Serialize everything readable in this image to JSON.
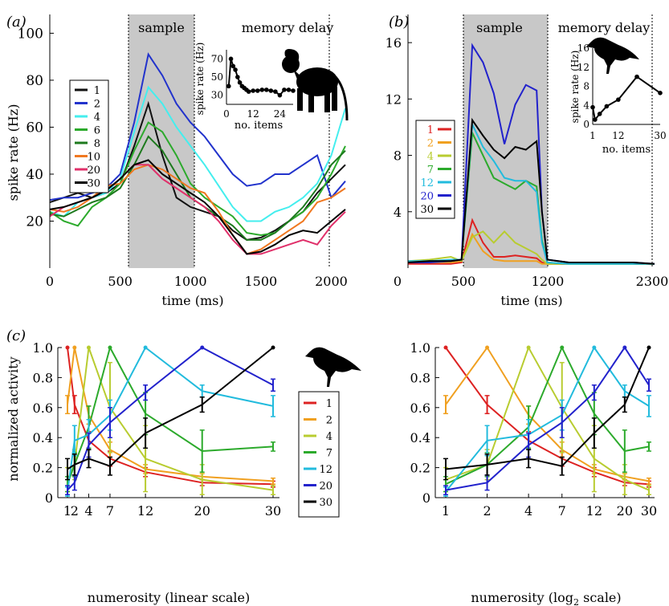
{
  "panels": {
    "a": {
      "label": "(a)",
      "sample_label": "sample",
      "delay_label": "memory delay",
      "xlabel": "time (ms)",
      "ylabel": "spike rate (Hz)",
      "xticks": [
        "0",
        "500",
        "1000",
        "1500",
        "2000"
      ],
      "yticks": [
        "20",
        "40",
        "60",
        "80",
        "100"
      ],
      "legend": [
        "1",
        "2",
        "4",
        "6",
        "8",
        "10",
        "20",
        "30"
      ],
      "inset": {
        "xlabel": "no. items",
        "ylabel": "spike rate (Hz)",
        "xticks": [
          "0",
          "12",
          "24"
        ],
        "yticks": [
          "30",
          "50",
          "70"
        ]
      }
    },
    "b": {
      "label": "(b)",
      "sample_label": "sample",
      "delay_label": "memory delay",
      "xlabel": "time (ms)",
      "yticks": [
        "4",
        "8",
        "12",
        "16"
      ],
      "xticks": [
        "0",
        "500",
        "1200",
        "2300"
      ],
      "legend": [
        "1",
        "2",
        "4",
        "7",
        "12",
        "20",
        "30"
      ],
      "inset": {
        "xlabel": "no. items",
        "ylabel": "spike rate (Hz)",
        "xticks": [
          "1",
          "12",
          "30"
        ],
        "yticks": [
          "0",
          "4",
          "8",
          "12",
          "16"
        ]
      }
    },
    "c": {
      "label": "(c)",
      "ylabel": "normalized activity",
      "xlabel_left": "numerosity (linear scale)",
      "xlabel_right_pre": "numerosity (log",
      "xlabel_right_sub": "2",
      "xlabel_right_post": " scale)",
      "xticks_left": [
        "1",
        "2",
        "4",
        "7",
        "12",
        "20",
        "30"
      ],
      "xticks_right": [
        "1",
        "2",
        "4",
        "7",
        "12",
        "20",
        "30"
      ],
      "yticks": [
        "0",
        "0.2",
        "0.4",
        "0.6",
        "0.8",
        "1.0"
      ],
      "legend": [
        "1",
        "2",
        "4",
        "7",
        "12",
        "20",
        "30"
      ]
    }
  },
  "colors": {
    "n1": "#dd2222",
    "n2": "#f0a020",
    "n4": "#b8cc30",
    "n6": "#2caa2c",
    "n7": "#2caa2c",
    "n8": "#1e7a1e",
    "n10": "#f07820",
    "n12": "#22bbdd",
    "n20": "#2222cc",
    "n20a": "#e0306a",
    "n30": "#000000",
    "n2a": "#2233cc",
    "n4a": "#44eeee",
    "sample_fill": "#c8c8c8"
  },
  "chart_data": [
    {
      "type": "line",
      "title": "",
      "xlabel": "time (ms)",
      "ylabel": "spike rate (Hz)",
      "xlim": [
        0,
        2100
      ],
      "ylim": [
        0,
        100
      ],
      "x": [
        0,
        100,
        200,
        300,
        400,
        500,
        600,
        700,
        800,
        900,
        1000,
        1100,
        1200,
        1300,
        1400,
        1500,
        1600,
        1700,
        1800,
        1900,
        2000,
        2100
      ],
      "series": [
        {
          "name": "1",
          "values": [
            28,
            30,
            32,
            30,
            32,
            36,
            52,
            70,
            48,
            30,
            26,
            24,
            22,
            16,
            12,
            13,
            16,
            20,
            24,
            32,
            38,
            44
          ]
        },
        {
          "name": "2",
          "values": [
            29,
            30,
            30,
            32,
            34,
            40,
            62,
            91,
            82,
            70,
            62,
            56,
            48,
            40,
            35,
            36,
            40,
            40,
            44,
            48,
            30,
            37
          ]
        },
        {
          "name": "4",
          "values": [
            24,
            22,
            28,
            30,
            32,
            38,
            58,
            77,
            70,
            60,
            52,
            44,
            35,
            26,
            20,
            20,
            24,
            26,
            30,
            36,
            48,
            68
          ]
        },
        {
          "name": "6",
          "values": [
            24,
            20,
            18,
            26,
            30,
            36,
            50,
            62,
            58,
            48,
            36,
            30,
            26,
            22,
            15,
            14,
            15,
            20,
            24,
            30,
            40,
            52
          ]
        },
        {
          "name": "8",
          "values": [
            23,
            22,
            25,
            28,
            30,
            34,
            44,
            56,
            50,
            40,
            30,
            26,
            22,
            18,
            12,
            12,
            15,
            20,
            26,
            34,
            44,
            50
          ]
        },
        {
          "name": "10",
          "values": [
            25,
            24,
            26,
            30,
            35,
            36,
            42,
            44,
            42,
            38,
            34,
            32,
            24,
            14,
            6,
            8,
            12,
            16,
            20,
            28,
            30,
            34
          ]
        },
        {
          "name": "20",
          "values": [
            22,
            26,
            28,
            30,
            33,
            38,
            44,
            44,
            38,
            34,
            30,
            26,
            20,
            12,
            6,
            6,
            8,
            10,
            12,
            10,
            18,
            24
          ]
        },
        {
          "name": "30",
          "values": [
            25,
            26,
            28,
            30,
            33,
            38,
            44,
            46,
            40,
            36,
            32,
            28,
            22,
            14,
            6,
            7,
            10,
            14,
            16,
            15,
            20,
            25
          ]
        }
      ],
      "inset": {
        "type": "line",
        "xlabel": "no. items",
        "ylabel": "spike rate (Hz)",
        "xlim": [
          0,
          30
        ],
        "ylim": [
          20,
          80
        ],
        "x": [
          1,
          2,
          3,
          4,
          5,
          6,
          7,
          8,
          9,
          10,
          12,
          14,
          16,
          18,
          20,
          22,
          24,
          26,
          28,
          30
        ],
        "values": [
          40,
          70,
          62,
          58,
          50,
          44,
          40,
          38,
          36,
          34,
          35,
          35,
          36,
          36,
          35,
          34,
          30,
          36,
          36,
          35
        ]
      }
    },
    {
      "type": "line",
      "title": "",
      "xlabel": "time (ms)",
      "ylabel": "",
      "xlim": [
        0,
        2300
      ],
      "ylim": [
        0,
        18
      ],
      "x": [
        0,
        200,
        400,
        500,
        600,
        700,
        800,
        900,
        1000,
        1100,
        1200,
        1250,
        1300,
        1500,
        1800,
        2100,
        2300
      ],
      "series": [
        {
          "name": "1",
          "values": [
            0.3,
            0.3,
            0.3,
            0.4,
            3.4,
            1.8,
            0.8,
            0.8,
            0.9,
            0.8,
            0.7,
            0.4,
            0.3,
            0.3,
            0.3,
            0.3,
            0.3
          ]
        },
        {
          "name": "2",
          "values": [
            0.4,
            0.4,
            0.4,
            0.5,
            2.4,
            1.2,
            0.6,
            0.5,
            0.5,
            0.5,
            0.5,
            0.3,
            0.3,
            0.3,
            0.3,
            0.3,
            0.3
          ]
        },
        {
          "name": "4",
          "values": [
            0.5,
            0.6,
            0.8,
            0.5,
            2.2,
            2.6,
            1.8,
            2.6,
            1.8,
            1.4,
            1.0,
            0.6,
            0.3,
            0.3,
            0.3,
            0.3,
            0.3
          ]
        },
        {
          "name": "7",
          "values": [
            0.4,
            0.5,
            0.5,
            0.6,
            9.6,
            8.0,
            6.4,
            6.0,
            5.6,
            6.2,
            5.8,
            2.0,
            0.4,
            0.3,
            0.3,
            0.3,
            0.3
          ]
        },
        {
          "name": "12",
          "values": [
            0.5,
            0.5,
            0.6,
            0.6,
            10.2,
            8.6,
            7.6,
            6.4,
            6.2,
            6.2,
            5.4,
            1.8,
            0.4,
            0.3,
            0.3,
            0.3,
            0.3
          ]
        },
        {
          "name": "20",
          "values": [
            0.4,
            0.4,
            0.5,
            0.6,
            15.8,
            14.6,
            12.4,
            8.8,
            11.6,
            13.0,
            12.6,
            4.0,
            0.6,
            0.4,
            0.4,
            0.4,
            0.3
          ]
        },
        {
          "name": "30",
          "values": [
            0.4,
            0.5,
            0.5,
            0.6,
            10.5,
            9.4,
            8.4,
            7.8,
            8.6,
            8.4,
            9.0,
            4.0,
            0.6,
            0.4,
            0.4,
            0.4,
            0.3
          ]
        }
      ],
      "inset": {
        "type": "line",
        "xlabel": "no. items",
        "ylabel": "spike rate (Hz)",
        "xlim": [
          0,
          30
        ],
        "ylim": [
          0,
          16
        ],
        "x": [
          1,
          2,
          4,
          7,
          12,
          20,
          30
        ],
        "values": [
          3.6,
          1.0,
          2.2,
          3.8,
          5.2,
          10.0,
          6.6
        ]
      }
    },
    {
      "type": "line",
      "title": "",
      "xlabel": "numerosity (linear scale)",
      "ylabel": "normalized activity",
      "ylim": [
        0,
        1
      ],
      "x": [
        1,
        2,
        4,
        7,
        12,
        20,
        30
      ],
      "series": [
        {
          "name": "1",
          "values": [
            1.0,
            0.62,
            0.38,
            0.26,
            0.17,
            0.1,
            0.09
          ],
          "err": [
            0,
            0.06,
            0.06,
            0.05,
            0.03,
            0.02,
            0.02
          ]
        },
        {
          "name": "2",
          "values": [
            0.62,
            1.0,
            0.55,
            0.32,
            0.19,
            0.14,
            0.11
          ],
          "err": [
            0.06,
            0,
            0.06,
            0.05,
            0.03,
            0.02,
            0.02
          ]
        },
        {
          "name": "4",
          "values": [
            0.12,
            0.22,
            1.0,
            0.6,
            0.26,
            0.12,
            0.05
          ],
          "err": [
            0.08,
            0.1,
            0,
            0.3,
            0.22,
            0.1,
            0.03
          ]
        },
        {
          "name": "7",
          "values": [
            0.09,
            0.22,
            0.47,
            1.0,
            0.56,
            0.31,
            0.34
          ],
          "err": [
            0.05,
            0.08,
            0.14,
            0,
            0.14,
            0.14,
            0.03
          ]
        },
        {
          "name": "12",
          "values": [
            0.04,
            0.38,
            0.42,
            0.55,
            1.0,
            0.71,
            0.61
          ],
          "err": [
            0.03,
            0.1,
            0.1,
            0.1,
            0,
            0.04,
            0.07
          ]
        },
        {
          "name": "20",
          "values": [
            0.05,
            0.1,
            0.35,
            0.5,
            0.7,
            1.0,
            0.75
          ],
          "err": [
            0.03,
            0.05,
            0.08,
            0.1,
            0.05,
            0,
            0.04
          ]
        },
        {
          "name": "30",
          "values": [
            0.19,
            0.22,
            0.26,
            0.21,
            0.43,
            0.62,
            1.0
          ],
          "err": [
            0.07,
            0.07,
            0.06,
            0.06,
            0.1,
            0.05,
            0
          ]
        }
      ]
    },
    {
      "type": "line",
      "title": "",
      "xlabel": "numerosity (log2 scale)",
      "ylabel": "",
      "ylim": [
        0,
        1
      ],
      "xscale": "log2",
      "x": [
        1,
        2,
        4,
        7,
        12,
        20,
        30
      ],
      "series_ref": "same as numerosity (linear scale)"
    }
  ]
}
